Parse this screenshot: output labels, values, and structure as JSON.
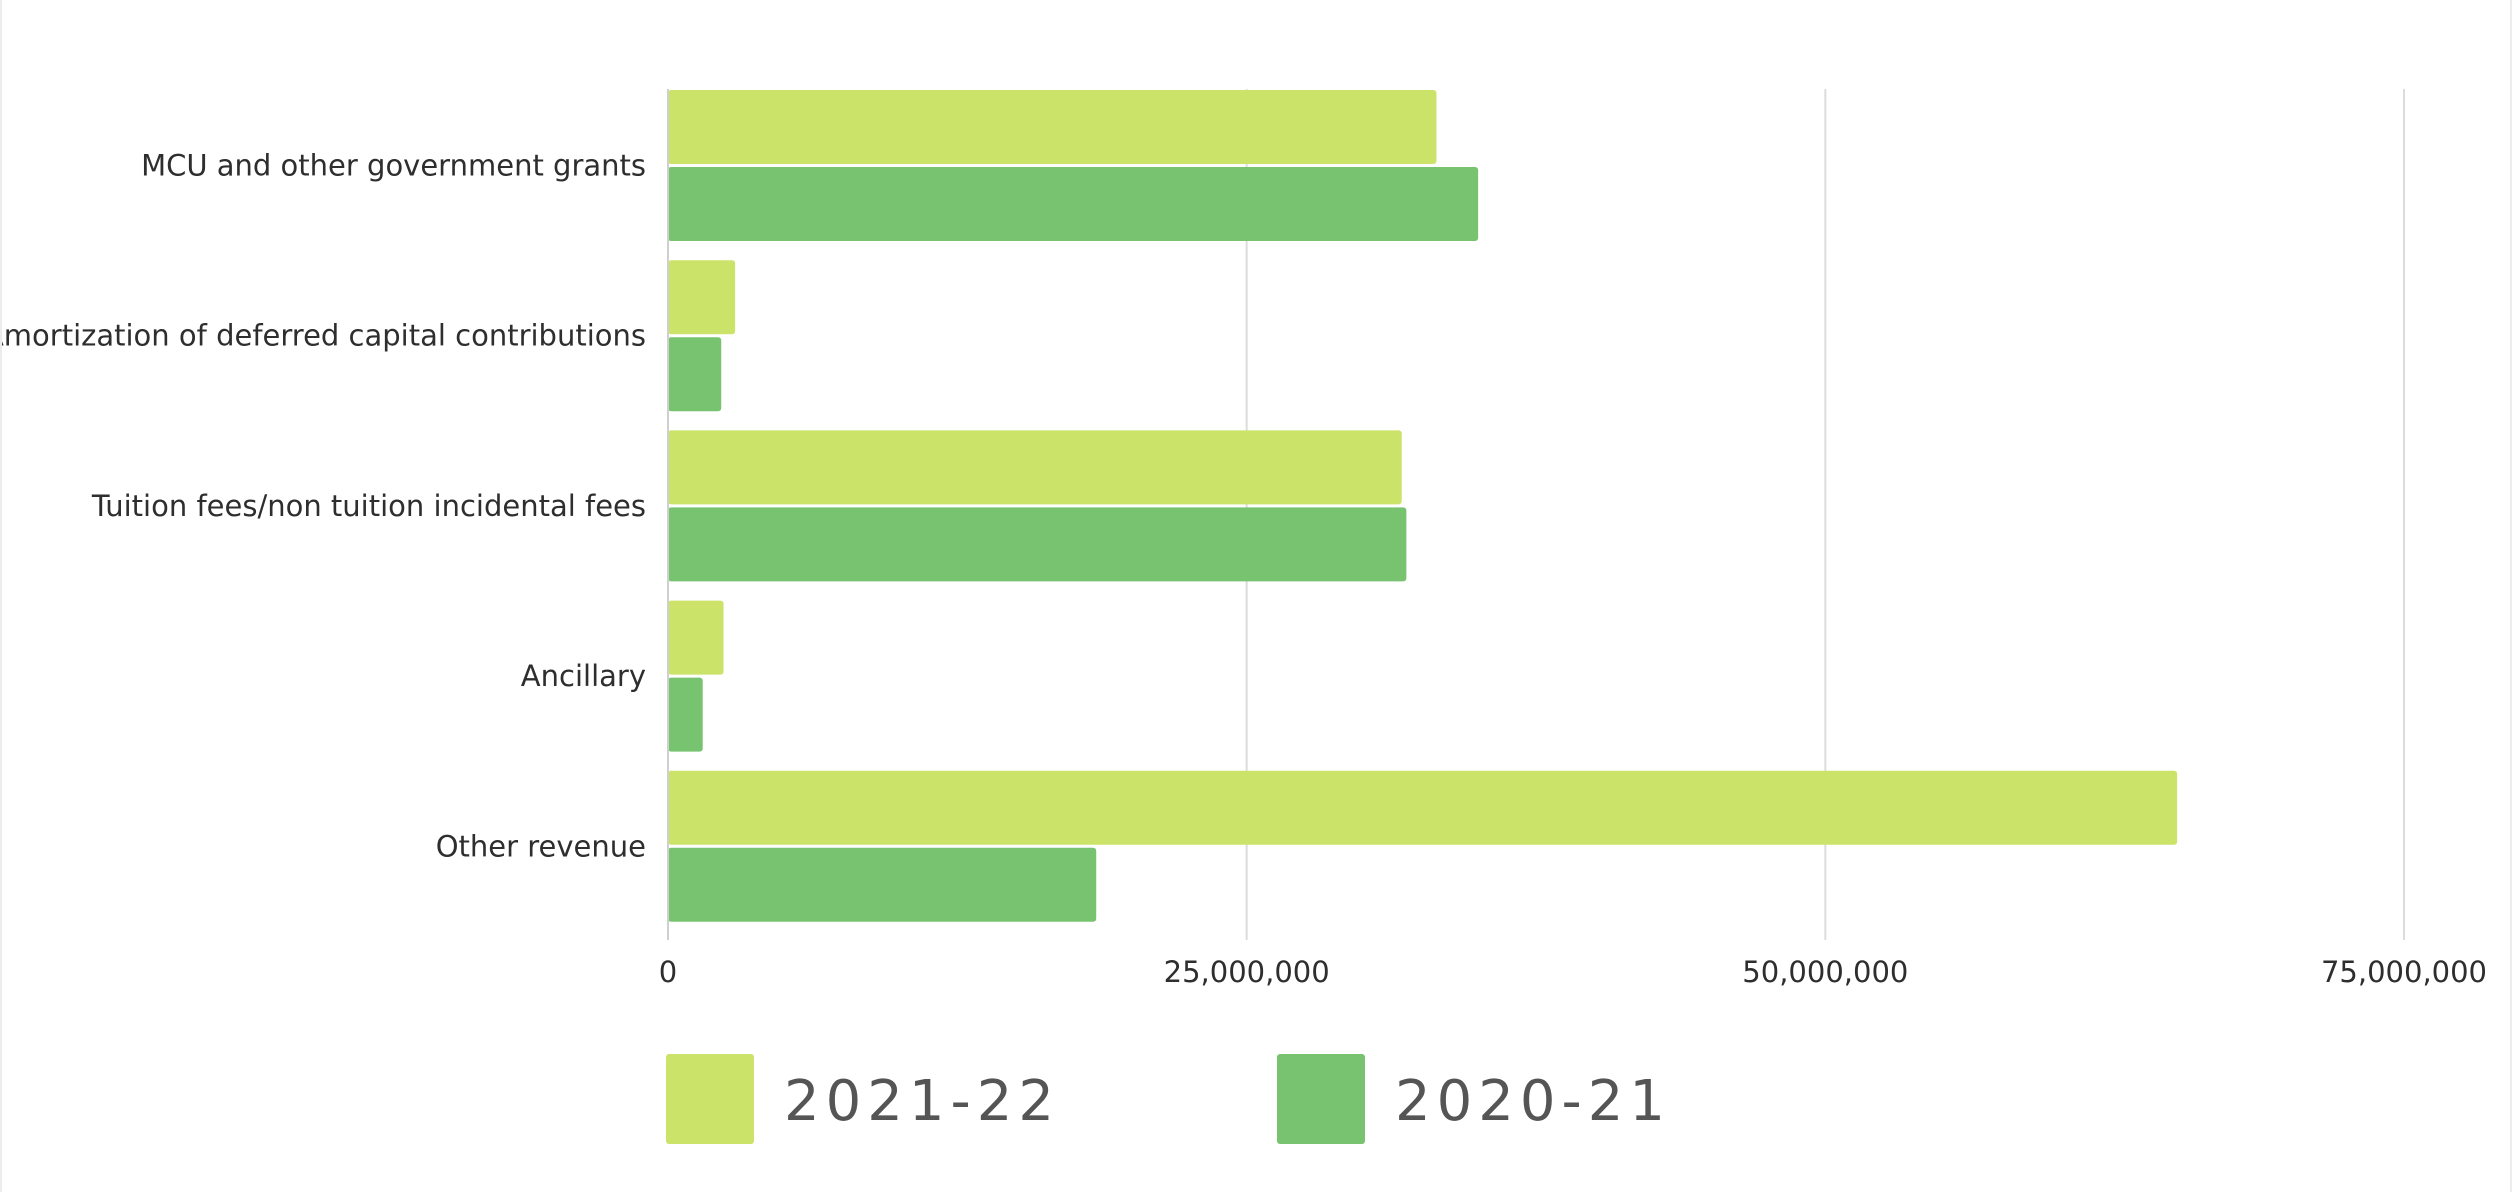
{
  "chart_data": {
    "type": "bar",
    "orientation": "horizontal",
    "categories": [
      "MCU and other government grants",
      "Amortization of deferred capital contributions",
      "Tuition fees/non tuition incidental fees",
      "Ancillary",
      "Other revenue"
    ],
    "series": [
      {
        "name": "2021-22",
        "color": "#cbe369",
        "values": [
          33200000,
          2900000,
          31700000,
          2400000,
          65200000
        ]
      },
      {
        "name": "2020-21",
        "color": "#78c370",
        "values": [
          35000000,
          2300000,
          31900000,
          1500000,
          18500000
        ]
      }
    ],
    "xlim": [
      0,
      75000000
    ],
    "xticks": [
      0,
      25000000,
      50000000,
      75000000
    ],
    "xtick_labels": [
      "0",
      "25,000,000",
      "50,000,000",
      "75,000,000"
    ],
    "grid": "vertical",
    "legend_position": "bottom",
    "title": "",
    "xlabel": "",
    "ylabel": ""
  }
}
